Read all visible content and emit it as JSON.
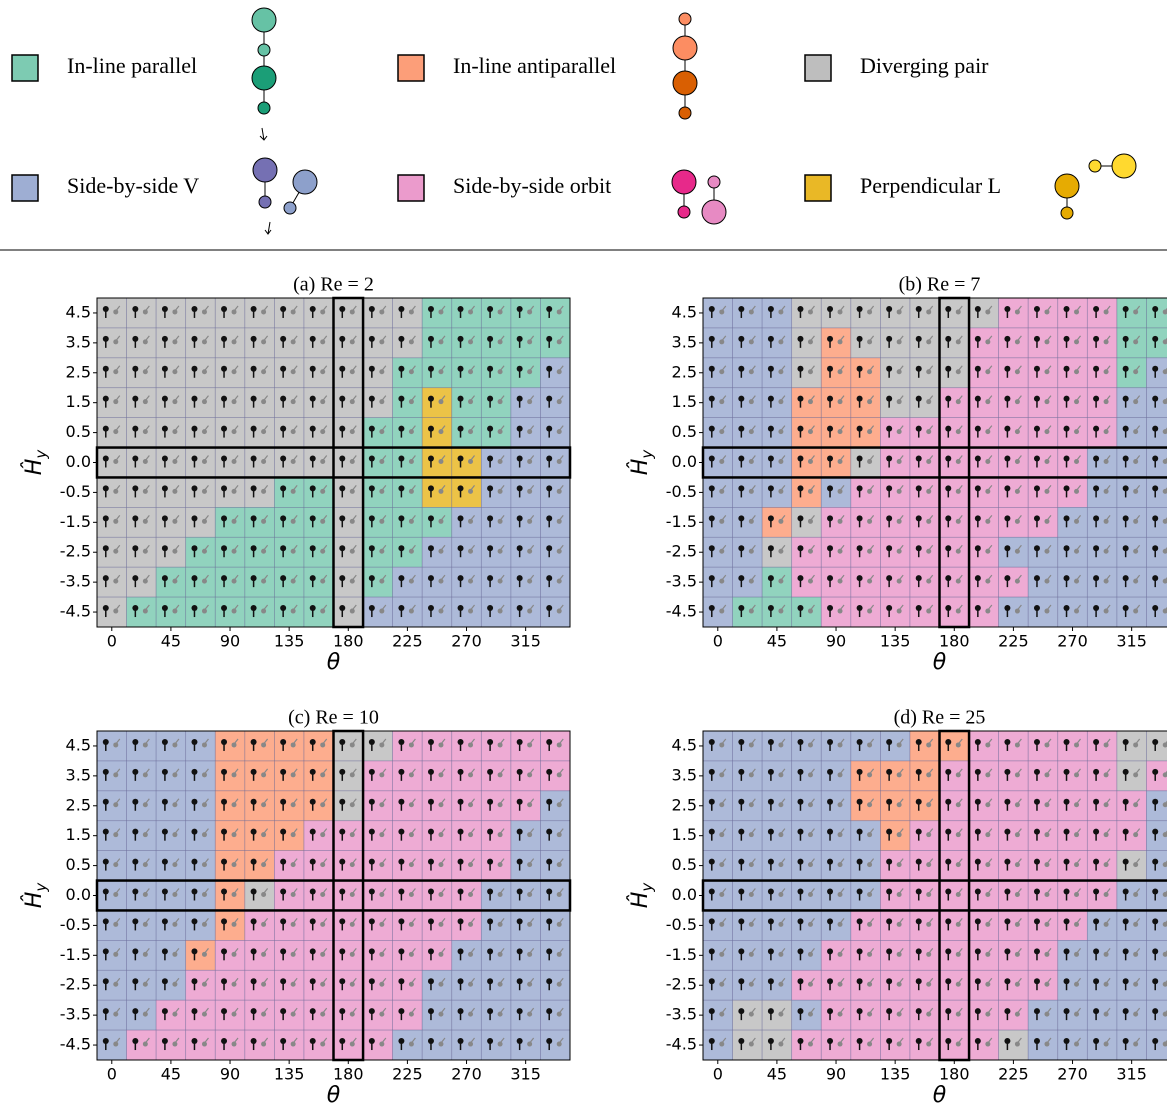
{
  "legend": [
    {
      "label": "In-line parallel",
      "color": "#66c2a5"
    },
    {
      "label": "In-line antiparallel",
      "color": "#fc8d62"
    },
    {
      "label": "Diverging pair",
      "color": "#b3b3b3"
    },
    {
      "label": "Side-by-side V",
      "color": "#8da0cb"
    },
    {
      "label": "Side-by-side orbit",
      "color": "#e78ac3"
    },
    {
      "label": "Perpendicular L",
      "color": "#e5ac00"
    }
  ],
  "chart_data": [
    {
      "type": "categorical-heatmap",
      "title": "(a) Re = 2",
      "xlabel": "θ",
      "ylabel": {
        "base": "Ĥ",
        "sub": "y"
      },
      "x": [
        0,
        22.5,
        45,
        67.5,
        90,
        112.5,
        135,
        157.5,
        180,
        202.5,
        225,
        247.5,
        270,
        292.5,
        315,
        337.5
      ],
      "rows": [
        "4.5",
        "3.5",
        "2.5",
        "1.5",
        "0.5",
        "0.0",
        "-0.5",
        "-1.5",
        "-2.5",
        "-3.5",
        "-4.5"
      ],
      "xlim": [
        -11.25,
        348.75
      ],
      "xticks": [
        0,
        45,
        90,
        135,
        180,
        225,
        270,
        315
      ],
      "highlight_x": 180,
      "highlight_row": "0.0",
      "cells": [
        [
          2,
          2,
          2,
          2,
          2,
          2,
          2,
          2,
          2,
          2,
          2,
          0,
          0,
          0,
          0,
          0
        ],
        [
          2,
          2,
          2,
          2,
          2,
          2,
          2,
          2,
          2,
          2,
          2,
          0,
          0,
          0,
          0,
          0
        ],
        [
          2,
          2,
          2,
          2,
          2,
          2,
          2,
          2,
          2,
          2,
          0,
          0,
          0,
          0,
          0,
          3
        ],
        [
          2,
          2,
          2,
          2,
          2,
          2,
          2,
          2,
          2,
          2,
          0,
          5,
          0,
          0,
          3,
          3
        ],
        [
          2,
          2,
          2,
          2,
          2,
          2,
          2,
          2,
          2,
          0,
          0,
          5,
          0,
          0,
          3,
          3
        ],
        [
          2,
          2,
          2,
          2,
          2,
          2,
          2,
          2,
          2,
          0,
          0,
          5,
          5,
          3,
          3,
          3
        ],
        [
          2,
          2,
          2,
          2,
          2,
          2,
          0,
          0,
          2,
          0,
          0,
          5,
          5,
          3,
          3,
          3
        ],
        [
          2,
          2,
          2,
          2,
          0,
          0,
          0,
          0,
          2,
          0,
          0,
          0,
          3,
          3,
          3,
          3
        ],
        [
          2,
          2,
          2,
          0,
          0,
          0,
          0,
          0,
          2,
          0,
          0,
          3,
          3,
          3,
          3,
          3
        ],
        [
          2,
          2,
          0,
          0,
          0,
          0,
          0,
          0,
          2,
          0,
          3,
          3,
          3,
          3,
          3,
          3
        ],
        [
          2,
          0,
          0,
          0,
          0,
          0,
          0,
          0,
          2,
          3,
          3,
          3,
          3,
          3,
          3,
          3
        ]
      ]
    },
    {
      "type": "categorical-heatmap",
      "title": "(b) Re = 7",
      "xlabel": "θ",
      "ylabel": {
        "base": "Ĥ",
        "sub": "y"
      },
      "x": [
        0,
        22.5,
        45,
        67.5,
        90,
        112.5,
        135,
        157.5,
        180,
        202.5,
        225,
        247.5,
        270,
        292.5,
        315,
        337.5
      ],
      "rows": [
        "4.5",
        "3.5",
        "2.5",
        "1.5",
        "0.5",
        "0.0",
        "-0.5",
        "-1.5",
        "-2.5",
        "-3.5",
        "-4.5"
      ],
      "xlim": [
        -11.25,
        348.75
      ],
      "xticks": [
        0,
        45,
        90,
        135,
        180,
        225,
        270,
        315
      ],
      "highlight_x": 180,
      "highlight_row": "0.0",
      "cells": [
        [
          3,
          3,
          3,
          2,
          2,
          2,
          2,
          2,
          2,
          2,
          4,
          4,
          4,
          4,
          0,
          0
        ],
        [
          3,
          3,
          3,
          2,
          1,
          2,
          2,
          2,
          2,
          4,
          4,
          4,
          4,
          4,
          0,
          0
        ],
        [
          3,
          3,
          3,
          2,
          1,
          1,
          2,
          2,
          2,
          4,
          4,
          4,
          4,
          4,
          0,
          3
        ],
        [
          3,
          3,
          3,
          1,
          1,
          1,
          2,
          2,
          4,
          4,
          4,
          4,
          4,
          4,
          3,
          3
        ],
        [
          3,
          3,
          3,
          1,
          1,
          1,
          4,
          4,
          4,
          4,
          4,
          4,
          4,
          4,
          3,
          3
        ],
        [
          3,
          3,
          3,
          1,
          1,
          2,
          4,
          4,
          4,
          4,
          4,
          4,
          4,
          3,
          3,
          3
        ],
        [
          3,
          3,
          3,
          1,
          3,
          4,
          4,
          4,
          4,
          4,
          4,
          4,
          4,
          3,
          3,
          3
        ],
        [
          3,
          3,
          1,
          2,
          4,
          4,
          4,
          4,
          4,
          4,
          4,
          4,
          3,
          3,
          3,
          3
        ],
        [
          3,
          3,
          2,
          4,
          4,
          4,
          4,
          4,
          4,
          4,
          3,
          3,
          3,
          3,
          3,
          3
        ],
        [
          3,
          3,
          0,
          4,
          4,
          4,
          4,
          4,
          4,
          4,
          4,
          3,
          3,
          3,
          3,
          3
        ],
        [
          3,
          0,
          0,
          0,
          4,
          4,
          4,
          4,
          4,
          4,
          3,
          3,
          3,
          3,
          3,
          3
        ]
      ]
    },
    {
      "type": "categorical-heatmap",
      "title": "(c) Re = 10",
      "xlabel": "θ",
      "ylabel": {
        "base": "Ĥ",
        "sub": "y"
      },
      "x": [
        0,
        22.5,
        45,
        67.5,
        90,
        112.5,
        135,
        157.5,
        180,
        202.5,
        225,
        247.5,
        270,
        292.5,
        315,
        337.5
      ],
      "rows": [
        "4.5",
        "3.5",
        "2.5",
        "1.5",
        "0.5",
        "0.0",
        "-0.5",
        "-1.5",
        "-2.5",
        "-3.5",
        "-4.5"
      ],
      "xlim": [
        -11.25,
        348.75
      ],
      "xticks": [
        0,
        45,
        90,
        135,
        180,
        225,
        270,
        315
      ],
      "highlight_x": 180,
      "highlight_row": "0.0",
      "cells": [
        [
          3,
          3,
          3,
          3,
          1,
          1,
          1,
          1,
          2,
          2,
          4,
          4,
          4,
          4,
          4,
          4
        ],
        [
          3,
          3,
          3,
          3,
          1,
          1,
          1,
          1,
          2,
          4,
          4,
          4,
          4,
          4,
          4,
          4
        ],
        [
          3,
          3,
          3,
          3,
          1,
          1,
          1,
          1,
          2,
          4,
          4,
          4,
          4,
          4,
          4,
          3
        ],
        [
          3,
          3,
          3,
          3,
          1,
          1,
          1,
          4,
          4,
          4,
          4,
          4,
          4,
          4,
          3,
          3
        ],
        [
          3,
          3,
          3,
          3,
          1,
          1,
          4,
          4,
          4,
          4,
          4,
          4,
          4,
          4,
          3,
          3
        ],
        [
          3,
          3,
          3,
          3,
          1,
          2,
          4,
          4,
          4,
          4,
          4,
          4,
          4,
          3,
          3,
          3
        ],
        [
          3,
          3,
          3,
          3,
          1,
          4,
          4,
          4,
          4,
          4,
          4,
          4,
          4,
          3,
          3,
          3
        ],
        [
          3,
          3,
          3,
          1,
          4,
          4,
          4,
          4,
          4,
          4,
          4,
          4,
          3,
          3,
          3,
          3
        ],
        [
          3,
          3,
          3,
          4,
          4,
          4,
          4,
          4,
          4,
          4,
          4,
          3,
          3,
          3,
          3,
          3
        ],
        [
          3,
          3,
          4,
          4,
          4,
          4,
          4,
          4,
          4,
          4,
          4,
          3,
          3,
          3,
          3,
          3
        ],
        [
          3,
          4,
          4,
          4,
          4,
          4,
          4,
          4,
          4,
          4,
          3,
          3,
          3,
          3,
          3,
          3
        ]
      ]
    },
    {
      "type": "categorical-heatmap",
      "title": "(d) Re = 25",
      "xlabel": "θ",
      "ylabel": {
        "base": "Ĥ",
        "sub": "y"
      },
      "x": [
        0,
        22.5,
        45,
        67.5,
        90,
        112.5,
        135,
        157.5,
        180,
        202.5,
        225,
        247.5,
        270,
        292.5,
        315,
        337.5
      ],
      "rows": [
        "4.5",
        "3.5",
        "2.5",
        "1.5",
        "0.5",
        "0.0",
        "-0.5",
        "-1.5",
        "-2.5",
        "-3.5",
        "-4.5"
      ],
      "xlim": [
        -11.25,
        348.75
      ],
      "xticks": [
        0,
        45,
        90,
        135,
        180,
        225,
        270,
        315
      ],
      "highlight_x": 180,
      "highlight_row": "0.0",
      "cells": [
        [
          3,
          3,
          3,
          3,
          3,
          3,
          3,
          1,
          1,
          4,
          4,
          4,
          4,
          4,
          2,
          2
        ],
        [
          3,
          3,
          3,
          3,
          3,
          1,
          1,
          1,
          4,
          4,
          4,
          4,
          4,
          4,
          2,
          4
        ],
        [
          3,
          3,
          3,
          3,
          3,
          1,
          1,
          1,
          4,
          4,
          4,
          4,
          4,
          4,
          4,
          3
        ],
        [
          3,
          3,
          3,
          3,
          3,
          3,
          1,
          4,
          4,
          4,
          4,
          4,
          4,
          4,
          4,
          3
        ],
        [
          3,
          3,
          3,
          3,
          3,
          3,
          4,
          4,
          4,
          4,
          4,
          4,
          4,
          4,
          2,
          3
        ],
        [
          3,
          3,
          3,
          3,
          3,
          3,
          4,
          4,
          4,
          4,
          4,
          4,
          4,
          4,
          3,
          3
        ],
        [
          3,
          3,
          3,
          3,
          3,
          4,
          4,
          4,
          4,
          4,
          4,
          4,
          4,
          3,
          3,
          3
        ],
        [
          3,
          3,
          3,
          3,
          4,
          4,
          4,
          4,
          4,
          4,
          4,
          4,
          3,
          3,
          3,
          3
        ],
        [
          3,
          3,
          3,
          4,
          4,
          4,
          4,
          4,
          4,
          4,
          4,
          4,
          3,
          3,
          3,
          3
        ],
        [
          3,
          2,
          2,
          3,
          4,
          4,
          4,
          4,
          4,
          4,
          4,
          3,
          3,
          3,
          3,
          3
        ],
        [
          3,
          2,
          2,
          4,
          4,
          4,
          4,
          4,
          4,
          4,
          2,
          3,
          3,
          3,
          3,
          3
        ]
      ]
    }
  ]
}
